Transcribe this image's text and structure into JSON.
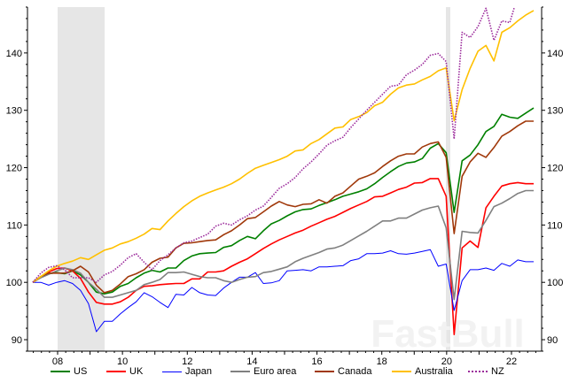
{
  "chart_data": {
    "type": "line",
    "title": "",
    "xlabel": "",
    "ylabel": "",
    "x_start": "2007Q1",
    "x_end": "2022Q4",
    "frequency": "quarterly",
    "ylim": [
      88,
      148
    ],
    "yticks": [
      90,
      100,
      110,
      120,
      130,
      140
    ],
    "xtick_labels": [
      "08",
      "10",
      "12",
      "14",
      "16",
      "18",
      "20",
      "22"
    ],
    "xtick_years": [
      2008,
      2010,
      2012,
      2014,
      2016,
      2018,
      2020,
      2022
    ],
    "y_axis_both_sides": true,
    "grid": false,
    "legend_position": "bottom",
    "shaded_periods": [
      {
        "start": "2008Q1",
        "end": "2009Q2",
        "color": "#e6e6e6"
      },
      {
        "start": "2020Q1",
        "end": "2020Q1",
        "color": "#e6e6e6"
      }
    ],
    "watermark": "FastBull",
    "series": [
      {
        "name": "US",
        "color": "#008000",
        "style": "solid",
        "values": [
          100,
          101,
          101.5,
          101.7,
          101.5,
          102,
          101.3,
          100,
          98.3,
          98,
          98.3,
          99.3,
          99.8,
          100.8,
          101.6,
          102.1,
          101.8,
          102.5,
          102.5,
          103.8,
          104.6,
          105,
          105.1,
          105.2,
          106.1,
          106.4,
          107.3,
          108,
          107.6,
          109,
          110.2,
          110.8,
          111.6,
          112.3,
          112.7,
          112.8,
          113.4,
          113.9,
          114.4,
          115,
          115.4,
          115.8,
          116.3,
          117.2,
          118.3,
          119.3,
          120.2,
          120.8,
          121,
          121.6,
          123.4,
          124.2,
          122.6,
          112.2,
          121.2,
          122.2,
          124,
          126.3,
          127.2,
          129.3,
          128.8,
          128.6,
          129.5,
          130.4
        ]
      },
      {
        "name": "UK",
        "color": "#ff0000",
        "style": "solid",
        "values": [
          100,
          101,
          101.8,
          102.4,
          102.5,
          102,
          100.7,
          98.3,
          96.5,
          96.2,
          96.2,
          96.6,
          97.4,
          98.6,
          99.3,
          99.4,
          99.6,
          99.7,
          99.8,
          99.8,
          100.6,
          100.6,
          101.8,
          101.8,
          102,
          102.8,
          103.5,
          104.1,
          105,
          105.9,
          106.7,
          107.4,
          108,
          108.6,
          109.1,
          109.8,
          110.4,
          111,
          111.5,
          112.2,
          112.9,
          113.5,
          114.1,
          114.9,
          115,
          115.6,
          116.2,
          116.6,
          117.3,
          117.4,
          118.1,
          118.1,
          115,
          90.9,
          106,
          107.2,
          106.1,
          113,
          115,
          116.8,
          117.2,
          117.4,
          117.2,
          117.2
        ]
      },
      {
        "name": "Japan",
        "color": "#0000ff",
        "style": "thin",
        "values": [
          100,
          100,
          99.5,
          100,
          100.3,
          99.8,
          98.6,
          96.3,
          91.4,
          93.2,
          93.2,
          94.5,
          95.6,
          96.6,
          98.2,
          97.5,
          96.5,
          95.6,
          97.9,
          97.8,
          99.1,
          98.2,
          97.8,
          97.7,
          99,
          100,
          100.9,
          100.9,
          101.7,
          99.8,
          99.9,
          100.3,
          102,
          102.1,
          102.2,
          102,
          102.7,
          102.7,
          102.8,
          102.9,
          103.8,
          104.1,
          105,
          105,
          105.1,
          105.5,
          105,
          104.9,
          105.1,
          105.4,
          105.7,
          102.8,
          103.2,
          95.1,
          100.3,
          102.2,
          102.2,
          102.5,
          102.1,
          103.3,
          102.8,
          103.9,
          103.6,
          103.6
        ]
      },
      {
        "name": "Euro area",
        "color": "#808080",
        "style": "solid",
        "values": [
          100,
          100.8,
          101.4,
          102,
          102.5,
          102.2,
          101.6,
          100,
          98.8,
          97.4,
          97.4,
          97.8,
          98.2,
          98.6,
          99.6,
          100,
          100.5,
          101.7,
          101.7,
          101.8,
          101.4,
          101,
          100.8,
          100.8,
          100.3,
          100,
          100.5,
          100.9,
          101,
          101.7,
          101.9,
          102.3,
          102.7,
          103.6,
          104.2,
          104.7,
          105.2,
          105.8,
          106,
          106.5,
          107.3,
          108.1,
          108.9,
          109.8,
          110.7,
          110.7,
          111.2,
          111.2,
          111.9,
          112.6,
          113,
          113.3,
          109.5,
          97,
          108.9,
          108.7,
          108.6,
          110.8,
          113.2,
          113.8,
          114.6,
          115.5,
          116,
          116
        ]
      },
      {
        "name": "Canada",
        "color": "#a0380a",
        "style": "solid",
        "values": [
          100,
          101,
          101.6,
          101.6,
          101.6,
          102,
          102.8,
          101.8,
          99.5,
          98.2,
          98.6,
          99.7,
          101,
          101.5,
          102.2,
          103.5,
          104.2,
          104.4,
          106,
          106.8,
          106.9,
          107.1,
          107.3,
          107.4,
          108.3,
          109,
          110,
          111.1,
          111.3,
          112.3,
          113.3,
          114.1,
          113.5,
          113.2,
          113.6,
          113.7,
          114.4,
          113.8,
          115,
          115.6,
          116.8,
          118,
          118.5,
          119.1,
          120.2,
          121.2,
          122,
          122.4,
          122.4,
          123.6,
          124.2,
          124.5,
          121.8,
          108.5,
          118.5,
          121,
          122.5,
          121.8,
          123.5,
          125.5,
          126.3,
          127.3,
          128.1,
          128.1
        ]
      },
      {
        "name": "Australia",
        "color": "#ffc000",
        "style": "solid",
        "values": [
          100,
          101,
          102,
          102.8,
          103.3,
          103.7,
          104.3,
          104,
          104.8,
          105.6,
          106,
          106.7,
          107.1,
          107.7,
          108.4,
          109.4,
          109.2,
          110.7,
          112,
          113.2,
          114.2,
          115,
          115.6,
          116.1,
          116.6,
          117.2,
          118,
          119,
          119.9,
          120.4,
          120.9,
          121.4,
          122,
          122.9,
          123.1,
          124.2,
          124.9,
          125.9,
          126.9,
          127.1,
          128.4,
          128.9,
          129.6,
          130.8,
          131.4,
          132.8,
          133.9,
          134.4,
          134.6,
          135.3,
          135.9,
          136.9,
          137.4,
          128.2,
          133.6,
          137.3,
          140.3,
          141.3,
          138.6,
          143.6,
          144.4,
          145.6,
          146.6,
          147.4
        ]
      },
      {
        "name": "NZ",
        "color": "#9b2a9b",
        "style": "dotted",
        "values": [
          100,
          101.6,
          102.6,
          102.9,
          102.2,
          100.8,
          100.8,
          100.8,
          100,
          101.3,
          101.9,
          103,
          104.3,
          105,
          103.5,
          102.2,
          103.8,
          104.8,
          106,
          106.9,
          107.2,
          107.8,
          108.4,
          109.8,
          110.3,
          110,
          110.9,
          111.6,
          112.6,
          113.3,
          114.8,
          116.4,
          117.2,
          118.3,
          119.8,
          121,
          122.4,
          123.9,
          124.7,
          125.3,
          127,
          128.5,
          130,
          131.4,
          132.8,
          134.2,
          134.4,
          136.2,
          137,
          138,
          139.6,
          139.9,
          138.5,
          125,
          143.6,
          142.7,
          144.6,
          147.8,
          142.2,
          145.6,
          145.3,
          150
        ]
      }
    ]
  }
}
